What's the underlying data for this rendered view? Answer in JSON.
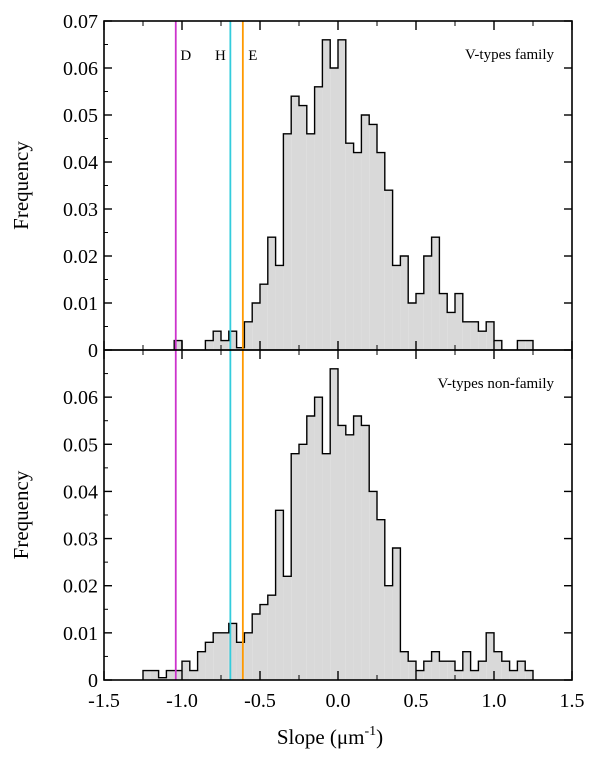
{
  "chart_data": [
    {
      "type": "area",
      "subtype": "histogram-step",
      "panel": "top",
      "label": "V-types family",
      "ylabel": "Frequency",
      "xlim": [
        -1.5,
        1.5
      ],
      "ylim": [
        0,
        0.07
      ],
      "xticks": [
        "-1.5",
        "-1.0",
        "-0.5",
        "0.0",
        "0.5",
        "1.0",
        "1.5"
      ],
      "yticks": [
        "0",
        "0.01",
        "0.02",
        "0.03",
        "0.04",
        "0.05",
        "0.06",
        "0.07"
      ],
      "fill_color": "#d9d9d9",
      "bin_width": 0.05,
      "bins": [
        [
          -1.05,
          -1.0,
          0.002
        ],
        [
          -0.85,
          -0.8,
          0.002
        ],
        [
          -0.8,
          -0.75,
          0.004
        ],
        [
          -0.75,
          -0.7,
          0.002
        ],
        [
          -0.7,
          -0.65,
          0.004
        ],
        [
          -0.65,
          -0.6,
          0.0005
        ],
        [
          -0.6,
          -0.55,
          0.006
        ],
        [
          -0.55,
          -0.5,
          0.01
        ],
        [
          -0.5,
          -0.45,
          0.014
        ],
        [
          -0.45,
          -0.4,
          0.024
        ],
        [
          -0.4,
          -0.35,
          0.018
        ],
        [
          -0.35,
          -0.3,
          0.046
        ],
        [
          -0.3,
          -0.25,
          0.054
        ],
        [
          -0.25,
          -0.2,
          0.052
        ],
        [
          -0.2,
          -0.15,
          0.046
        ],
        [
          -0.15,
          -0.1,
          0.056
        ],
        [
          -0.1,
          -0.05,
          0.066
        ],
        [
          -0.05,
          0.0,
          0.06
        ],
        [
          0.0,
          0.05,
          0.066
        ],
        [
          0.05,
          0.1,
          0.044
        ],
        [
          0.1,
          0.15,
          0.042
        ],
        [
          0.15,
          0.2,
          0.05
        ],
        [
          0.2,
          0.25,
          0.048
        ],
        [
          0.25,
          0.3,
          0.042
        ],
        [
          0.3,
          0.35,
          0.034
        ],
        [
          0.35,
          0.4,
          0.018
        ],
        [
          0.4,
          0.45,
          0.02
        ],
        [
          0.45,
          0.5,
          0.01
        ],
        [
          0.5,
          0.55,
          0.012
        ],
        [
          0.55,
          0.6,
          0.02
        ],
        [
          0.6,
          0.65,
          0.024
        ],
        [
          0.65,
          0.7,
          0.012
        ],
        [
          0.7,
          0.75,
          0.008
        ],
        [
          0.75,
          0.8,
          0.012
        ],
        [
          0.8,
          0.85,
          0.006
        ],
        [
          0.85,
          0.9,
          0.006
        ],
        [
          0.9,
          0.95,
          0.004
        ],
        [
          0.95,
          1.0,
          0.006
        ],
        [
          1.0,
          1.05,
          0.002
        ],
        [
          1.15,
          1.2,
          0.002
        ],
        [
          1.2,
          1.25,
          0.002
        ]
      ]
    },
    {
      "type": "area",
      "subtype": "histogram-step",
      "panel": "bottom",
      "label": "V-types non-family",
      "xlabel": "Slope (μm",
      "xlabel_sup": "-1",
      "xlabel_end": ")",
      "ylabel": "Frequency",
      "xlim": [
        -1.5,
        1.5
      ],
      "ylim": [
        0,
        0.07
      ],
      "xticks": [
        "-1.5",
        "-1.0",
        "-0.5",
        "0.0",
        "0.5",
        "1.0",
        "1.5"
      ],
      "yticks": [
        "0",
        "0.01",
        "0.02",
        "0.03",
        "0.04",
        "0.05",
        "0.06"
      ],
      "fill_color": "#d9d9d9",
      "bin_width": 0.05,
      "bins": [
        [
          -1.25,
          -1.2,
          0.002
        ],
        [
          -1.2,
          -1.15,
          0.002
        ],
        [
          -1.15,
          -1.1,
          0.0005
        ],
        [
          -1.1,
          -1.05,
          0.002
        ],
        [
          -1.05,
          -1.0,
          0.002
        ],
        [
          -1.0,
          -0.95,
          0.004
        ],
        [
          -0.95,
          -0.9,
          0.002
        ],
        [
          -0.9,
          -0.85,
          0.006
        ],
        [
          -0.85,
          -0.8,
          0.008
        ],
        [
          -0.8,
          -0.75,
          0.01
        ],
        [
          -0.75,
          -0.7,
          0.01
        ],
        [
          -0.7,
          -0.65,
          0.012
        ],
        [
          -0.65,
          -0.6,
          0.008
        ],
        [
          -0.6,
          -0.55,
          0.01
        ],
        [
          -0.55,
          -0.5,
          0.014
        ],
        [
          -0.5,
          -0.45,
          0.016
        ],
        [
          -0.45,
          -0.4,
          0.018
        ],
        [
          -0.4,
          -0.35,
          0.036
        ],
        [
          -0.35,
          -0.3,
          0.022
        ],
        [
          -0.3,
          -0.25,
          0.048
        ],
        [
          -0.25,
          -0.2,
          0.05
        ],
        [
          -0.2,
          -0.15,
          0.056
        ],
        [
          -0.15,
          -0.1,
          0.06
        ],
        [
          -0.1,
          -0.05,
          0.048
        ],
        [
          -0.05,
          0.0,
          0.066
        ],
        [
          0.0,
          0.05,
          0.054
        ],
        [
          0.05,
          0.1,
          0.052
        ],
        [
          0.1,
          0.15,
          0.056
        ],
        [
          0.15,
          0.2,
          0.054
        ],
        [
          0.2,
          0.25,
          0.04
        ],
        [
          0.25,
          0.3,
          0.034
        ],
        [
          0.3,
          0.35,
          0.02
        ],
        [
          0.35,
          0.4,
          0.028
        ],
        [
          0.4,
          0.45,
          0.006
        ],
        [
          0.45,
          0.5,
          0.004
        ],
        [
          0.5,
          0.55,
          0.002
        ],
        [
          0.55,
          0.6,
          0.004
        ],
        [
          0.6,
          0.65,
          0.006
        ],
        [
          0.65,
          0.7,
          0.004
        ],
        [
          0.7,
          0.75,
          0.004
        ],
        [
          0.75,
          0.8,
          0.002
        ],
        [
          0.8,
          0.85,
          0.006
        ],
        [
          0.85,
          0.9,
          0.002
        ],
        [
          0.9,
          0.95,
          0.004
        ],
        [
          0.95,
          1.0,
          0.01
        ],
        [
          1.0,
          1.05,
          0.006
        ],
        [
          1.05,
          1.1,
          0.004
        ],
        [
          1.1,
          1.15,
          0.002
        ],
        [
          1.15,
          1.2,
          0.004
        ],
        [
          1.2,
          1.25,
          0.002
        ]
      ]
    }
  ],
  "reference_lines": [
    {
      "label": "D",
      "x": -1.04,
      "color": "#cc33cc"
    },
    {
      "label": "H",
      "x": -0.69,
      "color": "#33ccdd"
    },
    {
      "label": "E",
      "x": -0.61,
      "color": "#ff9900"
    }
  ]
}
